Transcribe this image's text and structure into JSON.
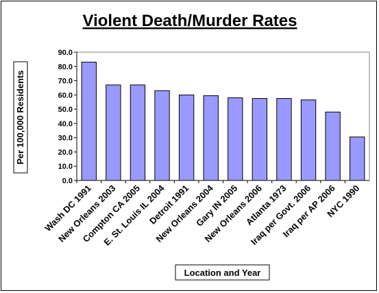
{
  "chart_data": {
    "type": "bar",
    "title": "Violent Death/Murder Rates",
    "xlabel": "Location and Year",
    "ylabel": "Per 100,000 Residents",
    "categories": [
      "Wash DC 1991",
      "New Orleans 2003",
      "Compton CA 2005",
      "E. St. Louis IL 2004",
      "Detroit 1991",
      "New Orleans 2004",
      "Gary IN 2005",
      "New Orleans 2006",
      "Atlanta 1973",
      "Iraq per Govt. 2006",
      "Iraq per AP 2006",
      "NYC 1990"
    ],
    "values": [
      83.0,
      67.0,
      67.0,
      63.0,
      60.0,
      59.5,
      58.0,
      57.5,
      57.5,
      56.5,
      48.0,
      30.5
    ],
    "ylim": [
      0,
      90
    ],
    "yticks": [
      "0.0",
      "10.0",
      "20.0",
      "30.0",
      "40.0",
      "50.0",
      "60.0",
      "70.0",
      "80.0",
      "90.0"
    ],
    "grid": false,
    "legend": "none",
    "bar_color": "#9999ff"
  }
}
